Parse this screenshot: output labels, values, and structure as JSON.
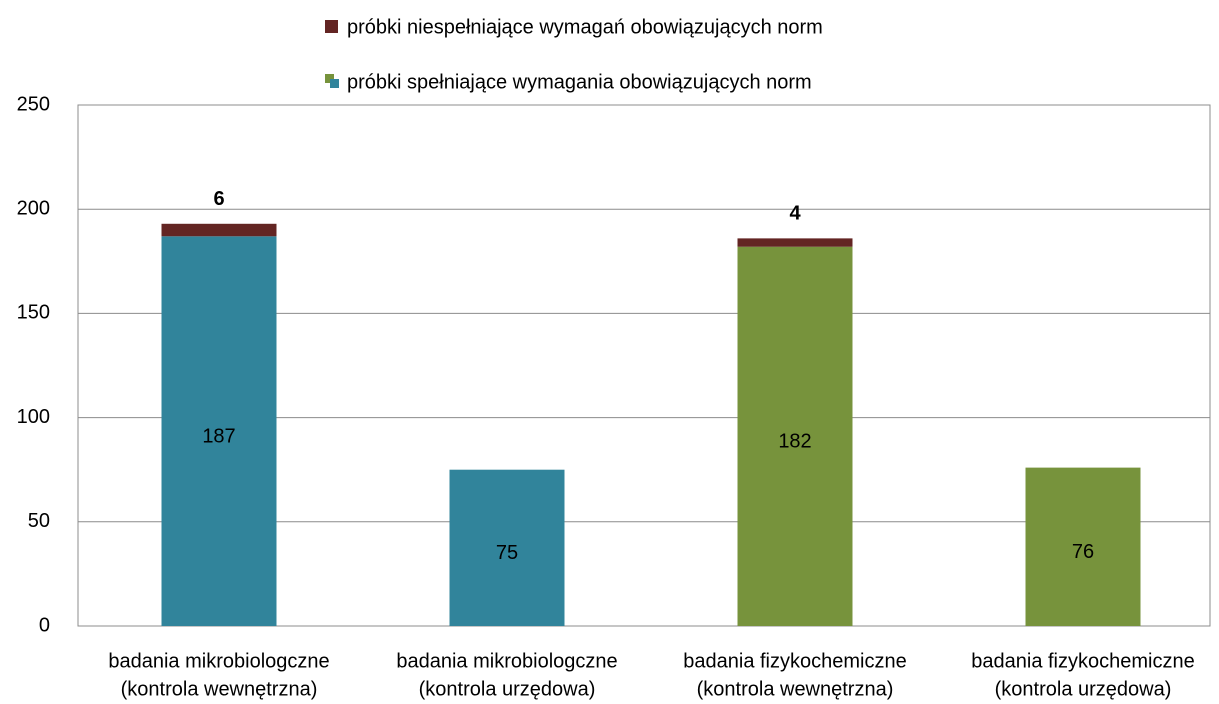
{
  "chart_data": {
    "type": "stacked-bar",
    "categories": [
      [
        "badania mikrobiologczne",
        "(kontrola wewnętrzna)"
      ],
      [
        "badania mikrobiologczne",
        "(kontrola urzędowa)"
      ],
      [
        "badania fizykochemiczne",
        "(kontrola wewnętrzna)"
      ],
      [
        "badania fizykochemiczne",
        "(kontrola urzędowa)"
      ]
    ],
    "series": [
      {
        "name": "próbki spełniające wymagania obowiązujących norm",
        "colors": [
          "#31849b",
          "#31849b",
          "#77933c",
          "#77933c"
        ],
        "values": [
          187,
          75,
          182,
          76
        ]
      },
      {
        "name": "próbki niespełniające wymagań obowiązujących norm",
        "color": "#632523",
        "values": [
          6,
          null,
          4,
          null
        ]
      }
    ],
    "ylim": [
      0,
      250
    ],
    "yticks": [
      0,
      50,
      100,
      150,
      200,
      250
    ],
    "grid": true,
    "legend": "top"
  }
}
